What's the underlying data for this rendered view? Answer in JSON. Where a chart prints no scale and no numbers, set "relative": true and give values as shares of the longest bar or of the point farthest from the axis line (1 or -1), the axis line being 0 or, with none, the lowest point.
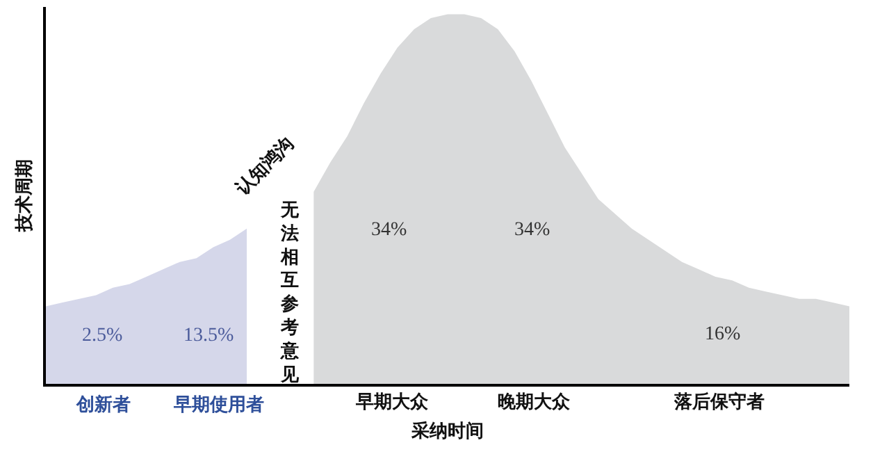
{
  "chart_data": {
    "type": "area",
    "relative": true,
    "xlabel": "采纳时间",
    "ylabel": "技术周期",
    "categories": [
      null,
      null,
      null,
      null,
      null,
      null,
      null,
      null,
      null,
      null,
      null,
      null,
      null,
      null,
      null,
      null,
      null,
      null,
      null,
      null,
      null,
      null,
      null,
      null,
      null,
      null,
      null,
      null,
      null,
      null,
      null,
      null,
      null,
      null,
      null,
      null,
      null,
      null,
      null,
      null,
      null,
      null,
      null,
      null,
      null,
      null,
      null,
      null,
      null
    ],
    "series": [
      {
        "color": "#d5d7ea",
        "values": [
          0.21,
          0.22,
          0.23,
          0.24,
          0.26,
          0.27,
          0.29,
          0.31,
          0.33,
          0.34,
          0.37,
          0.39,
          0.42,
          null,
          null,
          null,
          null,
          null,
          null,
          null,
          null,
          null,
          null,
          null,
          null,
          null,
          null,
          null,
          null,
          null,
          null,
          null,
          null,
          null,
          null,
          null,
          null,
          null,
          null,
          null,
          null,
          null,
          null,
          null,
          null,
          null,
          null,
          null,
          null
        ]
      },
      {
        "color": "#d9dadb",
        "values": [
          null,
          null,
          null,
          null,
          null,
          null,
          null,
          null,
          null,
          null,
          null,
          null,
          null,
          null,
          null,
          null,
          0.52,
          0.6,
          0.67,
          0.76,
          0.84,
          0.91,
          0.96,
          0.99,
          1.0,
          1.0,
          0.99,
          0.96,
          0.9,
          0.82,
          0.73,
          0.64,
          0.57,
          0.5,
          0.46,
          0.42,
          0.39,
          0.36,
          0.33,
          0.31,
          0.29,
          0.28,
          0.26,
          0.25,
          0.24,
          0.23,
          0.23,
          0.22,
          0.21
        ]
      }
    ],
    "annotations": [
      "2.5%",
      "13.5%",
      "34%",
      "34%",
      "16%",
      "创新者",
      "早期使用者",
      "早期大众",
      "晚期大众",
      "落后保守者",
      "认知鸿沟",
      "无法相互参考意见"
    ],
    "tick_labels": false
  }
}
